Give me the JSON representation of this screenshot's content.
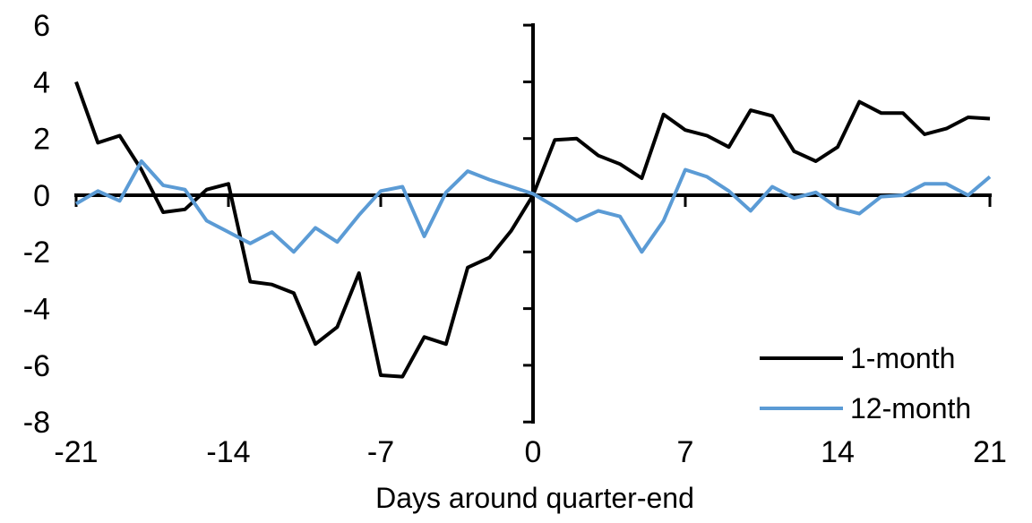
{
  "chart_data": {
    "type": "line",
    "title": "",
    "xlabel": "Days around quarter-end",
    "ylabel": "",
    "xlim": [
      -21,
      21
    ],
    "ylim": [
      -8,
      6
    ],
    "x_ticks": [
      -21,
      -14,
      -7,
      0,
      7,
      14,
      21
    ],
    "y_ticks": [
      6,
      4,
      2,
      0,
      -2,
      -4,
      -6,
      -8
    ],
    "grid": false,
    "legend_position": "inside-bottom-right",
    "background": "#FFFFFF",
    "axis_color": "#000000",
    "x": [
      -21,
      -20,
      -19,
      -18,
      -17,
      -16,
      -15,
      -14,
      -13,
      -12,
      -11,
      -10,
      -9,
      -8,
      -7,
      -6,
      -5,
      -4,
      -3,
      -2,
      -1,
      0,
      1,
      2,
      3,
      4,
      5,
      6,
      7,
      8,
      9,
      10,
      11,
      12,
      13,
      14,
      15,
      16,
      17,
      18,
      19,
      20,
      21
    ],
    "series": [
      {
        "name": "1-month",
        "color": "#000000",
        "values": [
          4.0,
          1.85,
          2.1,
          0.9,
          -0.6,
          -0.5,
          0.2,
          0.4,
          -3.05,
          -3.15,
          -3.45,
          -5.25,
          -4.65,
          -2.75,
          -6.35,
          -6.4,
          -5.0,
          -5.25,
          -2.55,
          -2.2,
          -1.25,
          0.0,
          1.95,
          2.0,
          1.4,
          1.1,
          0.6,
          2.85,
          2.3,
          2.1,
          1.7,
          3.0,
          2.8,
          1.55,
          1.2,
          1.7,
          3.3,
          2.9,
          2.9,
          2.15,
          2.35,
          2.75,
          2.7
        ]
      },
      {
        "name": "12-month",
        "color": "#5B9BD5",
        "values": [
          -0.3,
          0.15,
          -0.2,
          1.2,
          0.35,
          0.2,
          -0.9,
          -1.3,
          -1.7,
          -1.3,
          -2.0,
          -1.15,
          -1.65,
          -0.7,
          0.15,
          0.3,
          -1.45,
          0.1,
          0.85,
          0.55,
          0.3,
          0.05,
          -0.4,
          -0.9,
          -0.55,
          -0.75,
          -2.0,
          -0.9,
          0.9,
          0.65,
          0.15,
          -0.55,
          0.3,
          -0.1,
          0.1,
          -0.45,
          -0.65,
          -0.05,
          0.0,
          0.4,
          0.4,
          0.0,
          0.65
        ]
      }
    ]
  }
}
